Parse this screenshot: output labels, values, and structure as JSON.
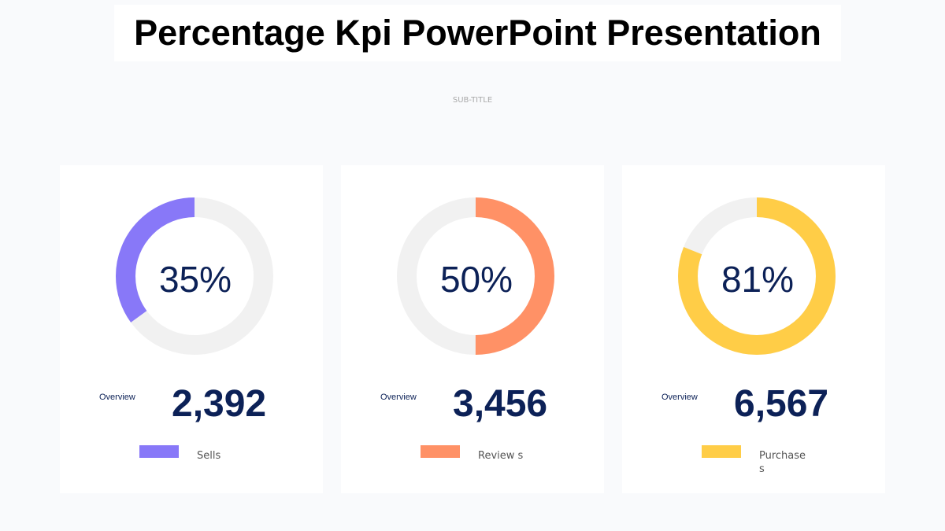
{
  "title": "Percentage Kpi PowerPoint Presentation",
  "subtitle": "SUB-TITLE",
  "cards": [
    {
      "percent": 35,
      "percent_label": "35%",
      "overview_label": "Overview",
      "value": "2,392",
      "legend": "Sells",
      "color": "#8878f8"
    },
    {
      "percent": 50,
      "percent_label": "50%",
      "overview_label": "Overview",
      "value": "3,456",
      "legend": "Review s",
      "color": "#ff9166"
    },
    {
      "percent": 81,
      "percent_label": "81%",
      "overview_label": "Overview",
      "value": "6,567",
      "legend": "Purchases",
      "color": "#ffcd47"
    }
  ],
  "track_color": "#f1f1f1"
}
